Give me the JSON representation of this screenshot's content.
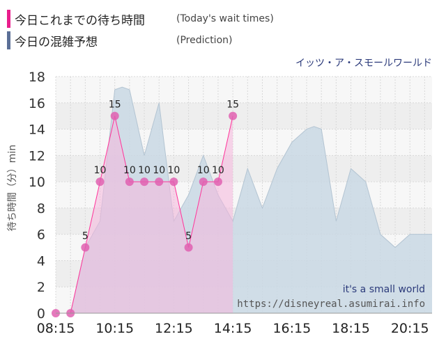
{
  "legend": {
    "actual_label": "今日これまでの待ち時間",
    "actual_sub": "(Today's wait times)",
    "prediction_label": "今日の混雑予想",
    "prediction_sub": "(Prediction)"
  },
  "attraction_name": "イッツ・ア・スモールワールド",
  "watermark": {
    "line1": "it's a small world",
    "line2": "https://disneyreal.asumirai.info"
  },
  "colors": {
    "actual_line": "#ff3399",
    "actual_point": "#e060b0",
    "actual_fill": "#f5b6dc",
    "prediction_fill": "#c9d8e4",
    "prediction_line": "#b3c4d2",
    "actual_swatch": "#e91e8c",
    "prediction_swatch": "#5b6f96"
  },
  "chart_data": {
    "type": "area",
    "ylabel": "待ち時間（分）min",
    "ylim": [
      0,
      18
    ],
    "yticks": [
      "0",
      "2",
      "4",
      "6",
      "8",
      "10",
      "12",
      "14",
      "16",
      "18"
    ],
    "xlim": [
      "08:15",
      "21:00"
    ],
    "xticks": [
      "08:15",
      "10:15",
      "12:15",
      "14:15",
      "16:15",
      "18:15",
      "20:15"
    ],
    "series": [
      {
        "name": "今日の混雑予想",
        "x": [
          "08:15",
          "08:45",
          "09:15",
          "09:30",
          "09:45",
          "10:15",
          "10:30",
          "10:45",
          "11:15",
          "11:45",
          "12:15",
          "12:30",
          "12:45",
          "13:15",
          "13:30",
          "13:45",
          "14:15",
          "14:45",
          "15:15",
          "15:45",
          "16:15",
          "16:45",
          "17:00",
          "17:15",
          "17:45",
          "18:15",
          "18:45",
          "19:15",
          "19:45",
          "20:15",
          "20:45",
          "21:00"
        ],
        "values": [
          0,
          0,
          5,
          6,
          7,
          17,
          17.2,
          17,
          12,
          16,
          7,
          8,
          9,
          12,
          10.5,
          9,
          7,
          11,
          8,
          11,
          13,
          14,
          14.2,
          14,
          7,
          11,
          10,
          6,
          5,
          6,
          6,
          6
        ]
      },
      {
        "name": "今日これまでの待ち時間",
        "x": [
          "08:15",
          "08:45",
          "09:15",
          "09:45",
          "10:15",
          "10:45",
          "11:15",
          "11:45",
          "12:15",
          "12:45",
          "13:15",
          "13:45",
          "14:15"
        ],
        "values": [
          0,
          0,
          5,
          10,
          15,
          10,
          10,
          10,
          10,
          5,
          10,
          10,
          15
        ],
        "data_labels": [
          "",
          "",
          "5",
          "10",
          "15",
          "10",
          "10",
          "10",
          "10",
          "5",
          "10",
          "10",
          "15"
        ]
      }
    ],
    "grid": true
  }
}
